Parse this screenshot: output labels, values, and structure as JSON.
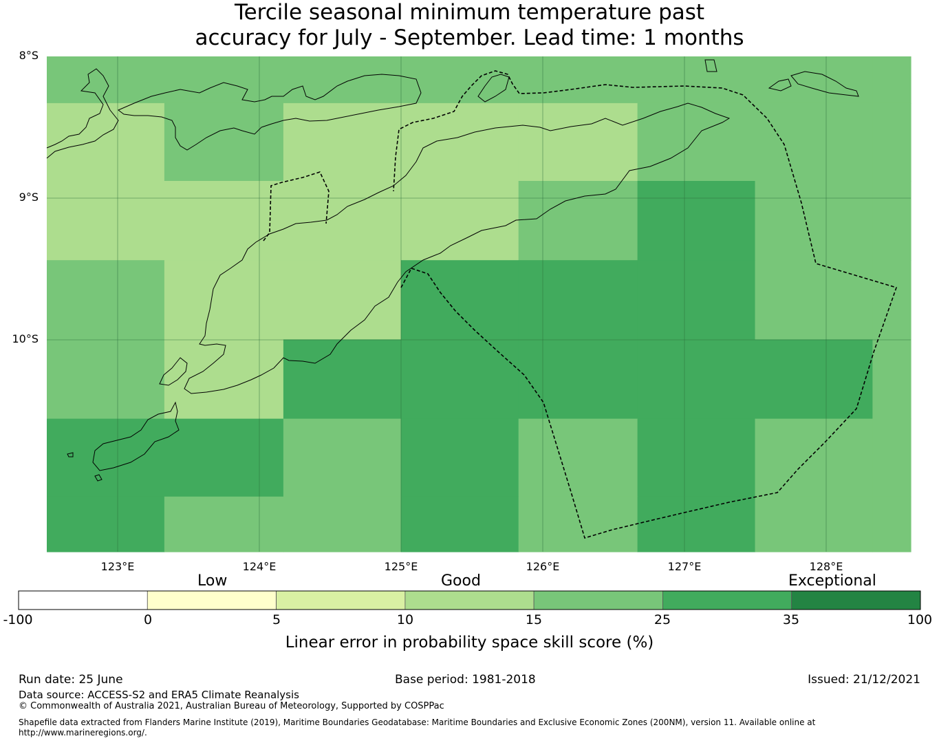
{
  "title": {
    "line1": "Tercile seasonal minimum temperature past",
    "line2": "accuracy for July - September. Lead time: 1 months"
  },
  "map": {
    "lat_labels": [
      "8°S",
      "9°S",
      "10°S"
    ],
    "lon_labels": [
      "123°E",
      "124°E",
      "125°E",
      "126°E",
      "127°E",
      "128°E"
    ],
    "lat_range": [
      -11.5,
      -8.0
    ],
    "lon_range": [
      122.5,
      128.6
    ],
    "skill_grid": {
      "lat_bands_top_to_bottom": [
        [
          -8.0,
          -8.33
        ],
        [
          -8.33,
          -8.88
        ],
        [
          -8.88,
          -9.44
        ],
        [
          -9.44,
          -10.0
        ],
        [
          -10.0,
          -10.56
        ],
        [
          -10.56,
          -11.11
        ],
        [
          -11.11,
          -11.5
        ]
      ],
      "lon_breaks": [
        122.5,
        123.33,
        124.17,
        125.0,
        125.83,
        126.67,
        127.5,
        128.33,
        128.6
      ],
      "class_index": [
        [
          4,
          4,
          4,
          4,
          4,
          4,
          4,
          4
        ],
        [
          3,
          4,
          3,
          3,
          3,
          4,
          4,
          4
        ],
        [
          3,
          3,
          3,
          3,
          4,
          5,
          4,
          4
        ],
        [
          4,
          3,
          3,
          5,
          5,
          5,
          4,
          4
        ],
        [
          4,
          3,
          5,
          5,
          5,
          5,
          5,
          4
        ],
        [
          5,
          5,
          4,
          5,
          4,
          5,
          4,
          4
        ],
        [
          5,
          4,
          4,
          5,
          4,
          5,
          4,
          4
        ]
      ]
    },
    "colors": {
      "lines": "#000000",
      "gridlines": "#2a6a3a"
    }
  },
  "colorbar": {
    "categories": [
      "Low",
      "Good",
      "Exceptional"
    ],
    "ticks": [
      "-100",
      "0",
      "5",
      "10",
      "15",
      "25",
      "35",
      "100"
    ],
    "colors": [
      "#ffffff",
      "#ffffcc",
      "#d9f0a3",
      "#addd8e",
      "#78c679",
      "#41ab5d",
      "#238443"
    ],
    "label": "Linear error in probability space skill score (%)"
  },
  "footer": {
    "run_date": "Run date: 25 June",
    "base_period": "Base period: 1981-2018",
    "issued": "Issued: 21/12/2021",
    "data_source": "Data source: ACCESS-S2 and ERA5 Climate Reanalysis",
    "copyright": "© Commonwealth of Australia 2021, Australian Bureau of Meteorology, Supported by COSPPac",
    "shapefile_line1": "Shapefile data extracted from Flanders Marine Institute (2019), Maritime Boundaries Geodatabase: Maritime Boundaries and Exclusive Economic Zones (200NM), version 11. Available online at",
    "shapefile_line2": "http://www.marineregions.org/."
  }
}
